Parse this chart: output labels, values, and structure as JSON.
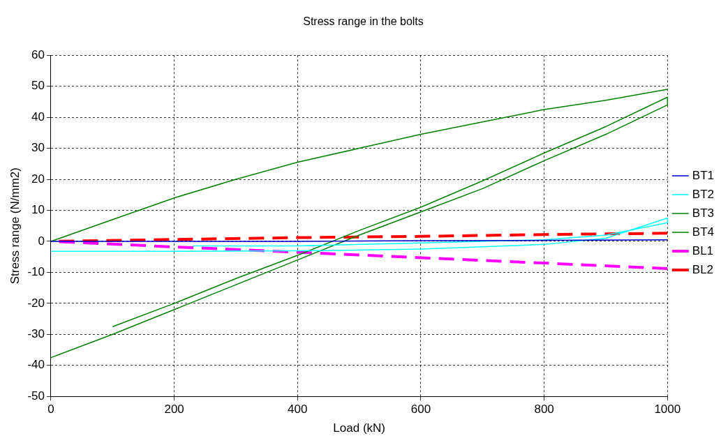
{
  "chart_data": {
    "type": "line",
    "title": "Stress range in the bolts",
    "xlabel": "Load (kN)",
    "ylabel": "Stress range (N/mm2)",
    "xlim": [
      0,
      1000
    ],
    "xticks": [
      0,
      200,
      400,
      600,
      800,
      1000
    ],
    "ylim": [
      -50,
      60
    ],
    "yticks": [
      -50,
      -40,
      -30,
      -20,
      -10,
      0,
      10,
      20,
      30,
      40,
      50,
      60
    ],
    "grid": true,
    "legend": "right",
    "marker": "none",
    "series": [
      {
        "name": "BT1",
        "color": "#0000cc",
        "line_style": "solid",
        "x": [
          0,
          200,
          400,
          600,
          800,
          1000
        ],
        "values": [
          0,
          0,
          0,
          0.2,
          0.3,
          0.5
        ]
      },
      {
        "name": "BT2",
        "color": "#00ffff",
        "line_style": "solid",
        "x": [
          0,
          200,
          440,
          600,
          800,
          900,
          1000,
          1000,
          900,
          800,
          600,
          400,
          230
        ],
        "values": [
          -3.2,
          -3.2,
          -3,
          -2.5,
          -1,
          1,
          7.5,
          6,
          2,
          0.5,
          -0.5,
          -1.5,
          -1.5
        ]
      },
      {
        "name": "BT3",
        "color": "#008000",
        "line_style": "solid",
        "x": [
          0,
          100,
          200,
          300,
          400,
          500,
          600,
          700,
          800,
          900,
          1000
        ],
        "values": [
          0,
          7,
          14,
          20,
          25.5,
          30,
          34.5,
          38.5,
          42.5,
          45.5,
          49
        ]
      },
      {
        "name": "BT4",
        "color": "#008000",
        "line_style": "solid",
        "x": [
          0,
          100,
          200,
          300,
          400,
          500,
          600,
          700,
          800,
          900,
          1000,
          1000,
          900,
          800,
          700,
          600,
          500,
          400,
          300,
          200,
          100
        ],
        "values": [
          -37.5,
          -30,
          -22,
          -14,
          -6,
          2,
          9.5,
          17,
          26,
          34.5,
          44,
          46.5,
          37,
          28.5,
          19.5,
          11,
          3.5,
          -4.5,
          -12,
          -20,
          -27.5
        ]
      },
      {
        "name": "BL1",
        "color": "#ff00ff",
        "line_style": "dashed",
        "x": [
          0,
          200,
          400,
          600,
          800,
          1000
        ],
        "values": [
          0,
          -1.8,
          -3.5,
          -5.3,
          -7,
          -8.8
        ]
      },
      {
        "name": "BL2",
        "color": "#ff0000",
        "line_style": "dashed",
        "x": [
          0,
          200,
          400,
          600,
          800,
          1000
        ],
        "values": [
          0,
          0.6,
          1.2,
          1.6,
          2.2,
          2.6
        ]
      }
    ]
  }
}
